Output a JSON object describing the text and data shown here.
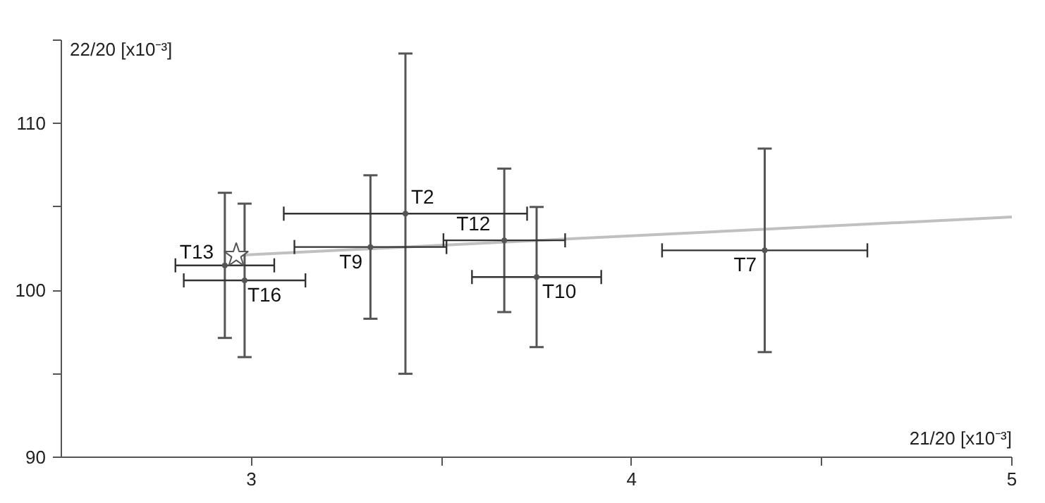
{
  "chart_data": {
    "type": "scatter",
    "xlabel": "21/20 [x10⁻³]",
    "ylabel": "22/20 [x10⁻³]",
    "xlim": [
      2.5,
      5
    ],
    "ylim": [
      90,
      115
    ],
    "xticks": [
      3,
      {
        "value": 3.5,
        "label": null
      },
      4,
      {
        "value": 4.5,
        "label": null
      },
      5
    ],
    "yticks": [
      90,
      {
        "value": 95,
        "label": null
      },
      100,
      {
        "value": 105,
        "label": null
      },
      110,
      {
        "value": 115,
        "label": null
      }
    ],
    "grid": false,
    "series": [
      {
        "type": "line",
        "color": "#c0c0c0",
        "x": [
          2.96,
          5
        ],
        "values": [
          102.1,
          104.4
        ]
      },
      {
        "color": "#555555",
        "x": [
          2.93,
          2.982,
          3.313,
          3.405,
          3.665,
          3.75,
          4.35
        ],
        "values": [
          101.5,
          100.6,
          102.6,
          104.6,
          103.0,
          100.8,
          102.4
        ],
        "errors": [
          4.35,
          4.6,
          4.3,
          9.6,
          4.3,
          4.2,
          6.1
        ],
        "xerrors": [
          0.13,
          0.16,
          0.2,
          0.32,
          0.16,
          0.17,
          0.27
        ]
      },
      {
        "marker": "star",
        "color": "#555555",
        "x": [
          2.96
        ],
        "values": [
          102.1
        ]
      }
    ],
    "annotations": [
      {
        "text": "T13",
        "x": 2.93,
        "y": 101.5
      },
      {
        "text": "T16",
        "x": 2.982,
        "y": 100.6
      },
      {
        "text": "T9",
        "x": 3.313,
        "y": 102.6
      },
      {
        "text": "T2",
        "x": 3.405,
        "y": 104.6
      },
      {
        "text": "T12",
        "x": 3.665,
        "y": 103.0
      },
      {
        "text": "T10",
        "x": 3.75,
        "y": 100.8
      },
      {
        "text": "T7",
        "x": 4.35,
        "y": 102.4
      }
    ]
  }
}
